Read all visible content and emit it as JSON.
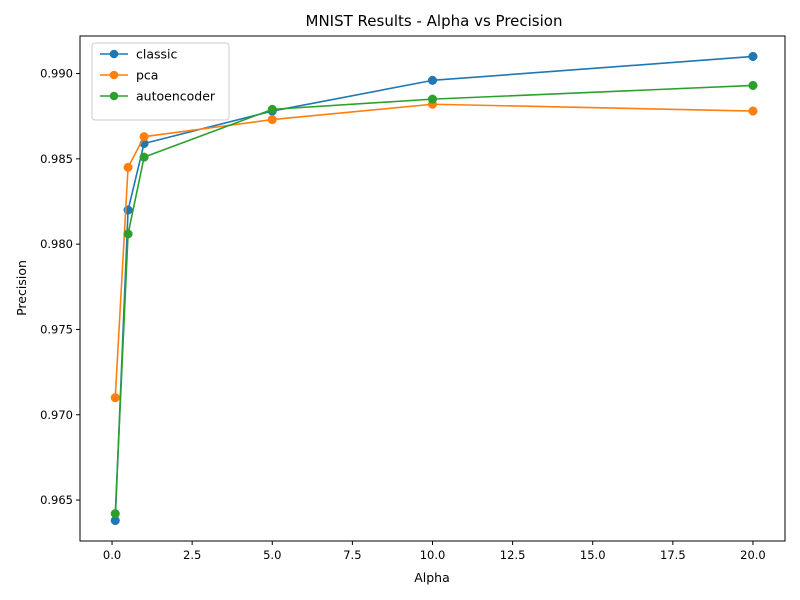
{
  "chart_data": {
    "type": "line",
    "title": "MNIST Results - Alpha vs Precision",
    "xlabel": "Alpha",
    "ylabel": "Precision",
    "xlim": [
      -1.0,
      21.0
    ],
    "ylim": [
      0.9626,
      0.9922
    ],
    "xticks": [
      0.0,
      2.5,
      5.0,
      7.5,
      10.0,
      12.5,
      15.0,
      17.5,
      20.0
    ],
    "xtick_labels": [
      "0.0",
      "2.5",
      "5.0",
      "7.5",
      "10.0",
      "12.5",
      "15.0",
      "17.5",
      "20.0"
    ],
    "yticks": [
      0.965,
      0.97,
      0.975,
      0.98,
      0.985,
      0.99
    ],
    "ytick_labels": [
      "0.965",
      "0.970",
      "0.975",
      "0.980",
      "0.985",
      "0.990"
    ],
    "legend_position": "top-left",
    "grid": false,
    "x": [
      0.1,
      0.5,
      1.0,
      5.0,
      10.0,
      20.0
    ],
    "series": [
      {
        "name": "classic",
        "color": "#1f77b4",
        "values": [
          0.9638,
          0.982,
          0.9859,
          0.9878,
          0.9896,
          0.991
        ]
      },
      {
        "name": "pca",
        "color": "#ff7f0e",
        "values": [
          0.971,
          0.9845,
          0.9863,
          0.9873,
          0.9882,
          0.9878
        ]
      },
      {
        "name": "autoencoder",
        "color": "#2ca02c",
        "values": [
          0.9642,
          0.9806,
          0.9851,
          0.9879,
          0.9885,
          0.9893
        ]
      }
    ]
  }
}
